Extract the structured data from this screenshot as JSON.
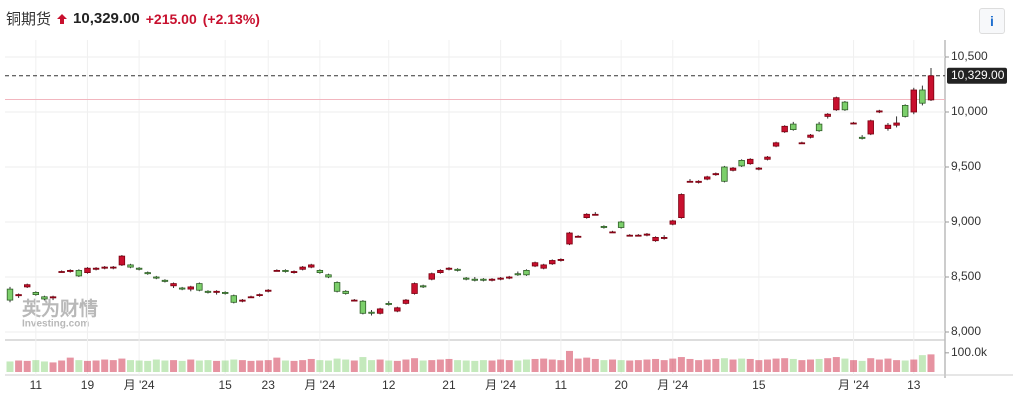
{
  "header": {
    "title": "铜期货",
    "price": "10,329.00",
    "change": "+215.00",
    "change_pct": "(+2.13%)",
    "info": "i"
  },
  "watermark": [
    "英为财情",
    "Investing.com"
  ],
  "chart_data": {
    "type": "candlestick",
    "up_color": "#c8102e",
    "down_color": "#7ccf6b",
    "ylim": [
      8000,
      10500
    ],
    "yticks": [
      {
        "value": 8000,
        "label": "8,000"
      },
      {
        "value": 8500,
        "label": "8,500"
      },
      {
        "value": 9000,
        "label": "9,000"
      },
      {
        "value": 9500,
        "label": "9,500"
      },
      {
        "value": 10000,
        "label": "10,000"
      },
      {
        "value": 10500,
        "label": "10,500"
      }
    ],
    "last": {
      "value": 10329,
      "label": "10,329.00"
    },
    "prev_close": 10114,
    "volume_ylim": [
      0,
      120000
    ],
    "volume_yticks": [
      {
        "value": 100000,
        "label": "100.0k"
      }
    ],
    "categories": [
      null,
      null,
      null,
      "11",
      null,
      null,
      null,
      null,
      null,
      "19",
      null,
      null,
      null,
      null,
      null,
      "月 '24",
      null,
      null,
      null,
      null,
      null,
      null,
      null,
      null,
      null,
      "15",
      null,
      null,
      null,
      null,
      "23",
      null,
      null,
      null,
      null,
      null,
      "月 '24",
      null,
      null,
      null,
      null,
      null,
      null,
      null,
      "12",
      null,
      null,
      null,
      null,
      null,
      null,
      "21",
      null,
      null,
      null,
      null,
      null,
      "月 '24",
      null,
      null,
      null,
      null,
      null,
      null,
      "11",
      null,
      null,
      null,
      null,
      null,
      null,
      "20",
      null,
      null,
      null,
      null,
      null,
      "月 '24",
      null,
      null,
      null,
      null,
      null,
      null,
      null,
      null,
      null,
      "15",
      null,
      null,
      null,
      null,
      null,
      null,
      null,
      null,
      null,
      null,
      "月 '24",
      null,
      null,
      null,
      null,
      null,
      null,
      "13",
      null,
      null
    ],
    "ohlc": [
      [
        8390,
        8410,
        8270,
        8290
      ],
      [
        8330,
        8350,
        8310,
        8340
      ],
      [
        8410,
        8440,
        8400,
        8430
      ],
      [
        8360,
        8370,
        8330,
        8340
      ],
      [
        8320,
        8330,
        8290,
        8300
      ],
      [
        8310,
        8330,
        8290,
        8320
      ],
      [
        8550,
        8560,
        8540,
        8550
      ],
      [
        8550,
        8570,
        8540,
        8560
      ],
      [
        8560,
        8570,
        8500,
        8510
      ],
      [
        8540,
        8590,
        8530,
        8580
      ],
      [
        8570,
        8590,
        8560,
        8580
      ],
      [
        8580,
        8600,
        8570,
        8590
      ],
      [
        8590,
        8600,
        8570,
        8590
      ],
      [
        8610,
        8700,
        8600,
        8690
      ],
      [
        8610,
        8620,
        8580,
        8590
      ],
      [
        8580,
        8590,
        8560,
        8570
      ],
      [
        8540,
        8550,
        8520,
        8530
      ],
      [
        8500,
        8510,
        8480,
        8490
      ],
      [
        8470,
        8480,
        8450,
        8460
      ],
      [
        8420,
        8450,
        8400,
        8440
      ],
      [
        8400,
        8410,
        8380,
        8390
      ],
      [
        8390,
        8420,
        8370,
        8410
      ],
      [
        8440,
        8450,
        8370,
        8380
      ],
      [
        8370,
        8380,
        8350,
        8360
      ],
      [
        8360,
        8380,
        8340,
        8370
      ],
      [
        8360,
        8370,
        8340,
        8350
      ],
      [
        8330,
        8340,
        8260,
        8270
      ],
      [
        8280,
        8300,
        8270,
        8290
      ],
      [
        8320,
        8330,
        8310,
        8320
      ],
      [
        8340,
        8350,
        8320,
        8340
      ],
      [
        8370,
        8390,
        8360,
        8380
      ],
      [
        8560,
        8570,
        8550,
        8560
      ],
      [
        8560,
        8570,
        8540,
        8550
      ],
      [
        8540,
        8560,
        8530,
        8550
      ],
      [
        8570,
        8600,
        8560,
        8590
      ],
      [
        8590,
        8620,
        8580,
        8610
      ],
      [
        8560,
        8570,
        8530,
        8540
      ],
      [
        8520,
        8530,
        8490,
        8500
      ],
      [
        8450,
        8460,
        8360,
        8370
      ],
      [
        8370,
        8380,
        8340,
        8350
      ],
      [
        8290,
        8300,
        8280,
        8290
      ],
      [
        8280,
        8290,
        8160,
        8170
      ],
      [
        8180,
        8200,
        8150,
        8170
      ],
      [
        8170,
        8220,
        8160,
        8210
      ],
      [
        8260,
        8280,
        8240,
        8250
      ],
      [
        8190,
        8230,
        8180,
        8220
      ],
      [
        8260,
        8300,
        8250,
        8290
      ],
      [
        8350,
        8450,
        8340,
        8440
      ],
      [
        8420,
        8430,
        8400,
        8410
      ],
      [
        8480,
        8540,
        8470,
        8530
      ],
      [
        8540,
        8570,
        8530,
        8560
      ],
      [
        8570,
        8590,
        8560,
        8580
      ],
      [
        8570,
        8580,
        8550,
        8560
      ],
      [
        8490,
        8500,
        8470,
        8480
      ],
      [
        8480,
        8500,
        8460,
        8470
      ],
      [
        8480,
        8490,
        8460,
        8470
      ],
      [
        8470,
        8490,
        8460,
        8480
      ],
      [
        8480,
        8500,
        8470,
        8490
      ],
      [
        8490,
        8510,
        8480,
        8500
      ],
      [
        8530,
        8550,
        8510,
        8520
      ],
      [
        8560,
        8570,
        8510,
        8520
      ],
      [
        8600,
        8640,
        8590,
        8630
      ],
      [
        8580,
        8620,
        8570,
        8610
      ],
      [
        8620,
        8660,
        8610,
        8650
      ],
      [
        8650,
        8670,
        8640,
        8660
      ],
      [
        8800,
        8910,
        8790,
        8900
      ],
      [
        8870,
        8880,
        8860,
        8870
      ],
      [
        9040,
        9080,
        9030,
        9070
      ],
      [
        9070,
        9090,
        9060,
        9070
      ],
      [
        8960,
        8970,
        8940,
        8950
      ],
      [
        8910,
        8920,
        8900,
        8910
      ],
      [
        9000,
        9010,
        8940,
        8950
      ],
      [
        8880,
        8890,
        8870,
        8880
      ],
      [
        8880,
        8890,
        8870,
        8880
      ],
      [
        8880,
        8900,
        8870,
        8890
      ],
      [
        8830,
        8870,
        8820,
        8860
      ],
      [
        8850,
        8880,
        8840,
        8860
      ],
      [
        8980,
        9020,
        8970,
        9010
      ],
      [
        9040,
        9260,
        9030,
        9250
      ],
      [
        9370,
        9390,
        9360,
        9370
      ],
      [
        9360,
        9380,
        9350,
        9370
      ],
      [
        9390,
        9420,
        9380,
        9410
      ],
      [
        9430,
        9450,
        9420,
        9440
      ],
      [
        9500,
        9510,
        9360,
        9370
      ],
      [
        9470,
        9500,
        9460,
        9490
      ],
      [
        9560,
        9570,
        9500,
        9510
      ],
      [
        9530,
        9580,
        9520,
        9570
      ],
      [
        9480,
        9500,
        9470,
        9490
      ],
      [
        9570,
        9600,
        9560,
        9590
      ],
      [
        9690,
        9730,
        9680,
        9720
      ],
      [
        9820,
        9880,
        9810,
        9870
      ],
      [
        9890,
        9910,
        9830,
        9840
      ],
      [
        9720,
        9730,
        9710,
        9720
      ],
      [
        9770,
        9800,
        9760,
        9790
      ],
      [
        9890,
        9910,
        9820,
        9830
      ],
      [
        9960,
        9990,
        9940,
        9980
      ],
      [
        10020,
        10140,
        10010,
        10130
      ],
      [
        10090,
        10100,
        10010,
        10020
      ],
      [
        9900,
        9910,
        9890,
        9900
      ],
      [
        9770,
        9790,
        9750,
        9760
      ],
      [
        9800,
        9930,
        9790,
        9920
      ],
      [
        10000,
        10020,
        9990,
        10010
      ],
      [
        9850,
        9900,
        9830,
        9880
      ],
      [
        9880,
        9960,
        9860,
        9900
      ],
      [
        10060,
        10070,
        9950,
        9960
      ],
      [
        10000,
        10220,
        9980,
        10200
      ],
      [
        10200,
        10240,
        10060,
        10080
      ],
      [
        10110,
        10400,
        10100,
        10329
      ]
    ],
    "volume": [
      55000,
      60000,
      58000,
      62000,
      55000,
      50000,
      60000,
      75000,
      62000,
      58000,
      60000,
      65000,
      62000,
      70000,
      62000,
      60000,
      58000,
      65000,
      60000,
      62000,
      58000,
      65000,
      60000,
      62000,
      58000,
      60000,
      65000,
      62000,
      58000,
      60000,
      62000,
      75000,
      60000,
      58000,
      62000,
      68000,
      62000,
      60000,
      70000,
      65000,
      60000,
      78000,
      62000,
      65000,
      60000,
      58000,
      65000,
      72000,
      60000,
      62000,
      65000,
      68000,
      62000,
      60000,
      58000,
      62000,
      60000,
      65000,
      62000,
      60000,
      65000,
      68000,
      70000,
      65000,
      62000,
      110000,
      70000,
      75000,
      68000,
      62000,
      65000,
      62000,
      60000,
      62000,
      65000,
      68000,
      62000,
      70000,
      78000,
      68000,
      62000,
      65000,
      68000,
      72000,
      65000,
      70000,
      68000,
      62000,
      65000,
      70000,
      72000,
      68000,
      62000,
      65000,
      68000,
      72000,
      78000,
      70000,
      62000,
      58000,
      72000,
      65000,
      70000,
      62000,
      60000,
      65000,
      88000,
      92000
    ]
  }
}
